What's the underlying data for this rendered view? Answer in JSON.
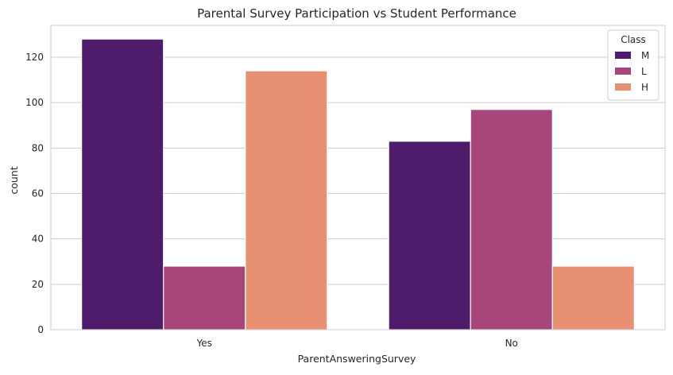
{
  "chart_data": {
    "type": "bar",
    "title": "Parental Survey Participation vs Student Performance",
    "xlabel": "ParentAnsweringSurvey",
    "ylabel": "count",
    "categories": [
      "Yes",
      "No"
    ],
    "series": [
      {
        "name": "M",
        "values": [
          128,
          83
        ],
        "color": "#4f1c6c"
      },
      {
        "name": "L",
        "values": [
          28,
          97
        ],
        "color": "#a7467a"
      },
      {
        "name": "H",
        "values": [
          114,
          28
        ],
        "color": "#e89072"
      }
    ],
    "ylim": [
      0,
      134
    ],
    "yticks": [
      0,
      20,
      40,
      60,
      80,
      100,
      120
    ],
    "grid": true,
    "legend": {
      "title": "Class",
      "position": "top-right"
    }
  }
}
